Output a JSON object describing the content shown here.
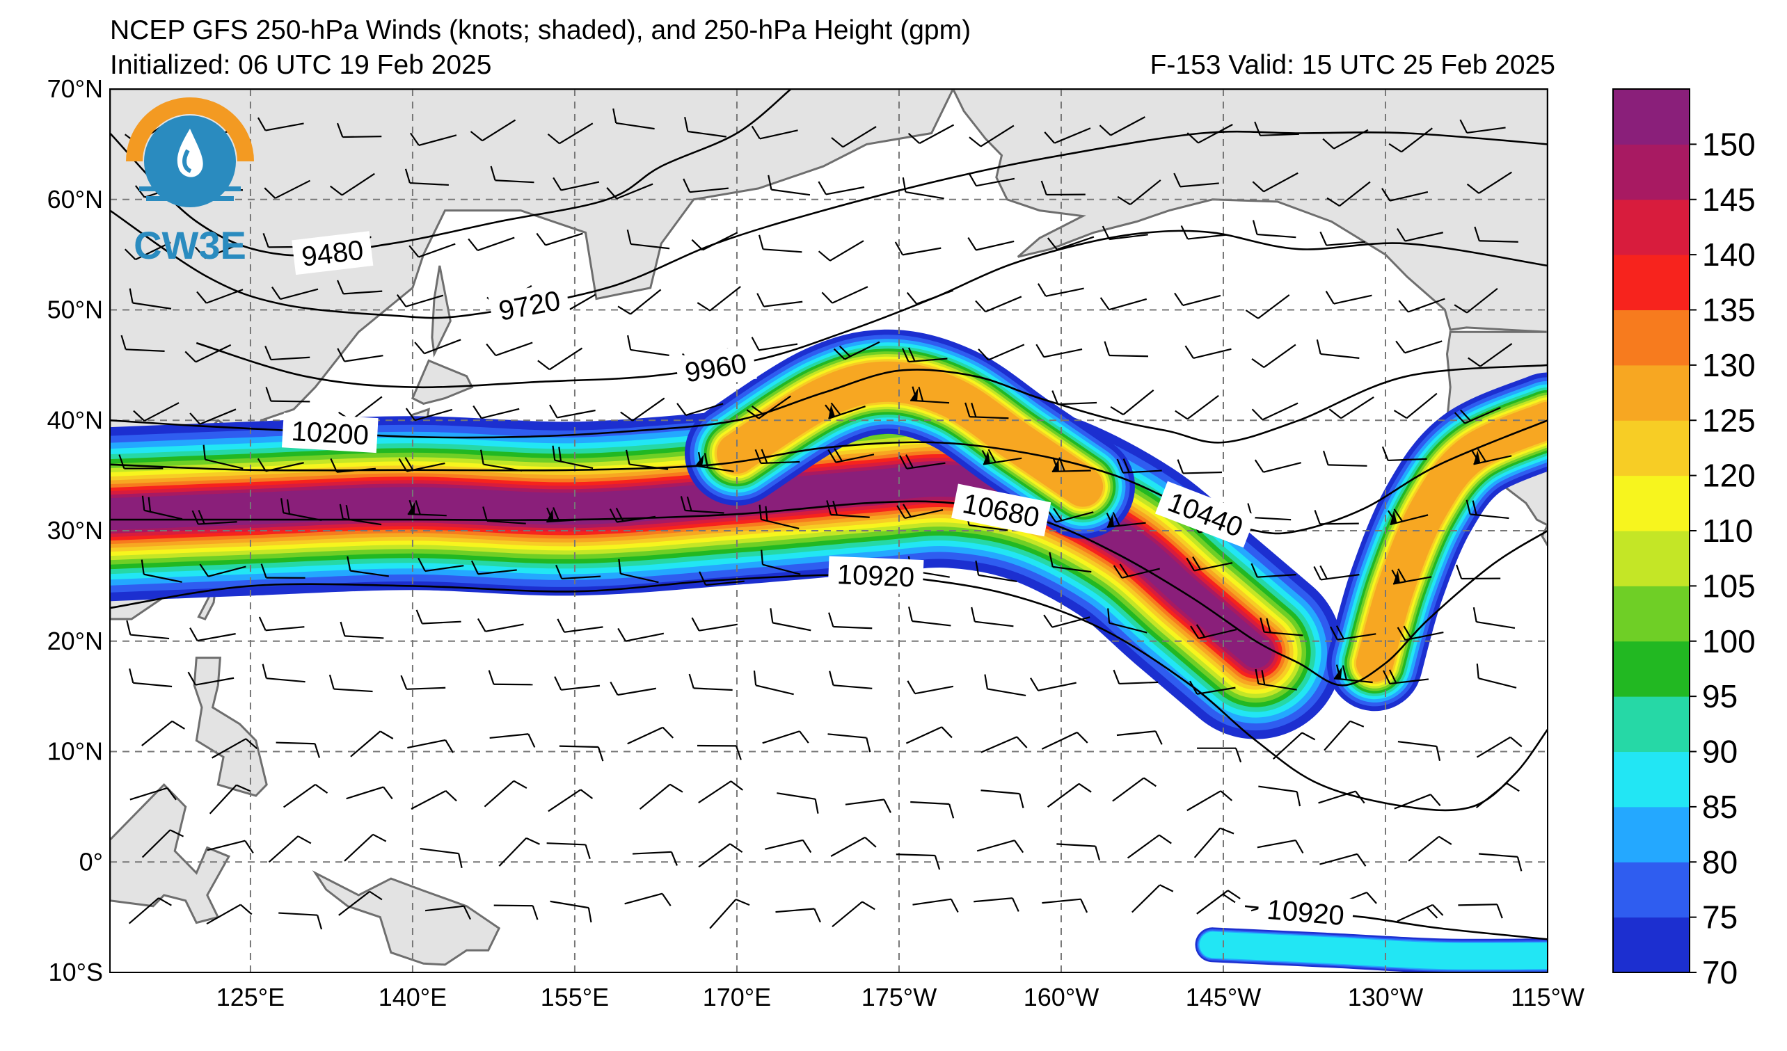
{
  "header": {
    "title": "NCEP GFS 250-hPa Winds (knots; shaded), and 250-hPa Height (gpm)",
    "initialized": "Initialized: 06 UTC 19 Feb 2025",
    "forecast": "F-153  Valid: 15 UTC 25 Feb 2025"
  },
  "logo": {
    "text": "CW3E",
    "icon": "cw3e-water-drop-logo-icon",
    "color_orange": "#f39a22",
    "color_blue": "#2a8bbf"
  },
  "map": {
    "lon_range_deg_east": [
      112,
      245
    ],
    "lat_range": [
      -10,
      70
    ],
    "lat_ticks": [
      {
        "lat": 70,
        "label": "70°N"
      },
      {
        "lat": 60,
        "label": "60°N"
      },
      {
        "lat": 50,
        "label": "50°N"
      },
      {
        "lat": 40,
        "label": "40°N"
      },
      {
        "lat": 30,
        "label": "30°N"
      },
      {
        "lat": 20,
        "label": "20°N"
      },
      {
        "lat": 10,
        "label": "10°N"
      },
      {
        "lat": 0,
        "label": "0°"
      },
      {
        "lat": -10,
        "label": "10°S"
      }
    ],
    "lon_ticks": [
      {
        "lon": 125,
        "label": "125°E"
      },
      {
        "lon": 140,
        "label": "140°E"
      },
      {
        "lon": 155,
        "label": "155°E"
      },
      {
        "lon": 170,
        "label": "170°E"
      },
      {
        "lon": 185,
        "label": "175°W"
      },
      {
        "lon": 200,
        "label": "160°W"
      },
      {
        "lon": 215,
        "label": "145°W"
      },
      {
        "lon": 230,
        "label": "130°W"
      },
      {
        "lon": 245,
        "label": "115°W"
      }
    ],
    "grid": "dashed",
    "land_color": "#e3e3e3",
    "coast_color": "#6e6e6e"
  },
  "colorbar": {
    "levels": [
      70,
      75,
      80,
      85,
      90,
      95,
      100,
      105,
      110,
      120,
      125,
      130,
      135,
      140,
      145,
      150,
      155
    ],
    "colors": [
      "#1c2fd0",
      "#2f5df0",
      "#24a8ff",
      "#22e6f4",
      "#26d8a6",
      "#22b822",
      "#6fcf26",
      "#c4e626",
      "#f7f51e",
      "#f7cd25",
      "#f7a722",
      "#f77b1e",
      "#f7231d",
      "#d81c3d",
      "#a81a62",
      "#8a1f7a"
    ],
    "labels": [
      "70",
      "75",
      "80",
      "85",
      "90",
      "95",
      "100",
      "105",
      "110",
      "120",
      "125",
      "130",
      "135",
      "140",
      "145",
      "150"
    ]
  },
  "contours": [
    {
      "value": 9480,
      "label": "9480",
      "pts": [
        [
          112,
          66
        ],
        [
          120,
          58
        ],
        [
          128,
          55
        ],
        [
          138,
          56
        ],
        [
          148,
          58
        ],
        [
          158,
          60
        ],
        [
          163,
          63
        ],
        [
          170,
          66
        ],
        [
          175,
          70
        ]
      ]
    },
    {
      "value": 9720,
      "label": "9720",
      "pts": [
        [
          112,
          59
        ],
        [
          121,
          53
        ],
        [
          128,
          50.5
        ],
        [
          138,
          49.5
        ],
        [
          145,
          49.5
        ],
        [
          158,
          52
        ],
        [
          168,
          56
        ],
        [
          178,
          59
        ],
        [
          190,
          62
        ],
        [
          200,
          64
        ],
        [
          213,
          66
        ],
        [
          222,
          66
        ],
        [
          232,
          66
        ],
        [
          245,
          65
        ]
      ]
    },
    {
      "value": 9960,
      "label": "9960",
      "pts": [
        [
          120,
          47
        ],
        [
          130,
          44
        ],
        [
          140,
          43
        ],
        [
          152,
          43.5
        ],
        [
          162,
          44
        ],
        [
          172,
          45.5
        ],
        [
          180,
          48
        ],
        [
          188,
          51
        ],
        [
          195,
          54
        ],
        [
          202,
          56
        ],
        [
          208,
          57
        ],
        [
          214,
          57
        ],
        [
          222,
          55.5
        ],
        [
          232,
          56
        ],
        [
          245,
          54
        ]
      ]
    },
    {
      "value": 10200,
      "label": "10200",
      "pts": [
        [
          112,
          40
        ],
        [
          120,
          39.5
        ],
        [
          130,
          39
        ],
        [
          140,
          38.5
        ],
        [
          150,
          38.5
        ],
        [
          160,
          39
        ],
        [
          170,
          40
        ],
        [
          178,
          42.5
        ],
        [
          185,
          44.5
        ],
        [
          192,
          44
        ],
        [
          198,
          42
        ],
        [
          205,
          40
        ],
        [
          210,
          39
        ],
        [
          215,
          38
        ],
        [
          222,
          40
        ],
        [
          232,
          44
        ],
        [
          245,
          45
        ]
      ]
    },
    {
      "value": 10440,
      "label": "10440",
      "pts": [
        [
          112,
          36
        ],
        [
          125,
          35.5
        ],
        [
          140,
          35.5
        ],
        [
          155,
          35.5
        ],
        [
          168,
          36
        ],
        [
          178,
          37.5
        ],
        [
          188,
          38
        ],
        [
          197,
          37
        ],
        [
          205,
          35
        ],
        [
          212,
          32
        ],
        [
          218,
          30
        ],
        [
          222,
          30
        ],
        [
          228,
          32
        ],
        [
          235,
          36
        ],
        [
          245,
          40
        ]
      ]
    },
    {
      "value": 10680,
      "label": "10680",
      "pts": [
        [
          112,
          31
        ],
        [
          125,
          31
        ],
        [
          140,
          31
        ],
        [
          155,
          31
        ],
        [
          170,
          31.5
        ],
        [
          182,
          32.5
        ],
        [
          190,
          32.5
        ],
        [
          198,
          31
        ],
        [
          205,
          28
        ],
        [
          212,
          24
        ],
        [
          218,
          20
        ],
        [
          222,
          18
        ],
        [
          226,
          16
        ],
        [
          230,
          18
        ],
        [
          234,
          22
        ],
        [
          240,
          27
        ],
        [
          245,
          30
        ]
      ]
    },
    {
      "value": 10920,
      "label": "10920",
      "pts": [
        [
          112,
          23
        ],
        [
          125,
          25
        ],
        [
          140,
          25
        ],
        [
          155,
          24.5
        ],
        [
          168,
          25.5
        ],
        [
          180,
          26
        ],
        [
          188,
          25.5
        ],
        [
          196,
          24
        ],
        [
          204,
          21
        ],
        [
          212,
          16
        ],
        [
          218,
          11
        ],
        [
          224,
          7
        ],
        [
          232,
          5
        ],
        [
          238,
          5
        ],
        [
          242,
          8
        ],
        [
          245,
          12
        ]
      ]
    },
    {
      "value": 10920,
      "label": "10920",
      "pts": [
        [
          217,
          -4
        ],
        [
          222,
          -4.5
        ],
        [
          228,
          -5
        ],
        [
          235,
          -6
        ],
        [
          245,
          -7
        ]
      ]
    }
  ],
  "jets": [
    {
      "name": "",
      "region": "main",
      "pts": [
        [
          112,
          31.5
        ],
        [
          125,
          32
        ],
        [
          140,
          32.5
        ],
        [
          155,
          32
        ],
        [
          170,
          33
        ],
        [
          182,
          34
        ],
        [
          190,
          34.5
        ],
        [
          198,
          33
        ],
        [
          206,
          29
        ],
        [
          212,
          24
        ],
        [
          218,
          19
        ]
      ]
    },
    {
      "name": "",
      "region": "ridge",
      "pts": [
        [
          170,
          37
        ],
        [
          178,
          42
        ],
        [
          184,
          43.5
        ],
        [
          190,
          42
        ],
        [
          196,
          38
        ],
        [
          202,
          34
        ]
      ]
    },
    {
      "name": "",
      "region": "east",
      "pts": [
        [
          229,
          18
        ],
        [
          231,
          25
        ],
        [
          234,
          32
        ],
        [
          238,
          37
        ],
        [
          245,
          40
        ]
      ]
    },
    {
      "name": "",
      "region": "south",
      "pts": [
        [
          214,
          -7.5
        ],
        [
          225,
          -8
        ],
        [
          235,
          -8.5
        ],
        [
          245,
          -8.5
        ]
      ]
    }
  ]
}
